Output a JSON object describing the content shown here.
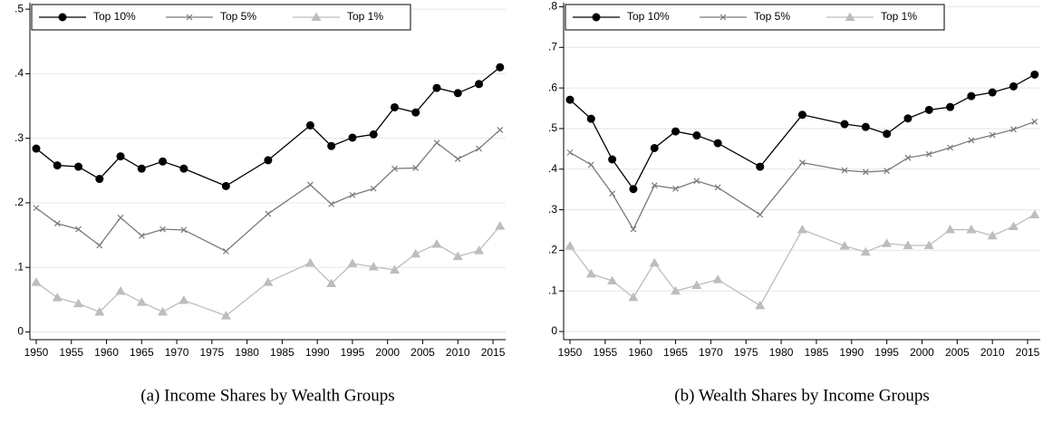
{
  "chart_data": [
    {
      "type": "line",
      "caption": "(a) Income Shares by Wealth Groups",
      "x": [
        1950,
        1953,
        1956,
        1959,
        1962,
        1965,
        1968,
        1971,
        1977,
        1983,
        1989,
        1992,
        1995,
        1998,
        2001,
        2004,
        2007,
        2010,
        2013,
        2016
      ],
      "series": [
        {
          "name": "Top 10%",
          "color": "#000000",
          "marker": "circle",
          "values": [
            0.284,
            0.258,
            0.256,
            0.237,
            0.272,
            0.253,
            0.264,
            0.253,
            0.226,
            0.266,
            0.32,
            0.288,
            0.301,
            0.306,
            0.348,
            0.34,
            0.378,
            0.37,
            0.384,
            0.41
          ]
        },
        {
          "name": "Top 5%",
          "color": "#7a7a7a",
          "marker": "x",
          "values": [
            0.192,
            0.168,
            0.159,
            0.134,
            0.177,
            0.149,
            0.159,
            0.158,
            0.125,
            0.183,
            0.228,
            0.198,
            0.212,
            0.222,
            0.253,
            0.254,
            0.293,
            0.268,
            0.284,
            0.313
          ]
        },
        {
          "name": "Top 1%",
          "color": "#bdbdbd",
          "marker": "triangle",
          "values": [
            0.077,
            0.053,
            0.044,
            0.031,
            0.063,
            0.046,
            0.031,
            0.049,
            0.025,
            0.077,
            0.107,
            0.075,
            0.106,
            0.101,
            0.096,
            0.121,
            0.136,
            0.117,
            0.126,
            0.164
          ]
        }
      ],
      "xlim": [
        1949.1,
        2016.8
      ],
      "xticks": [
        1950,
        1955,
        1960,
        1965,
        1970,
        1975,
        1980,
        1985,
        1990,
        1995,
        2000,
        2005,
        2010,
        2015
      ],
      "ylim": [
        -0.012,
        0.51
      ],
      "yticks": [
        0,
        {
          "value": 0.1,
          "label": ".1"
        },
        {
          "value": 0.2,
          "label": ".2"
        },
        {
          "value": 0.3,
          "label": ".3"
        },
        {
          "value": 0.4,
          "label": ".4"
        },
        {
          "value": 0.5,
          "label": ".5"
        }
      ],
      "grid": true,
      "legend": "top-left"
    },
    {
      "type": "line",
      "caption": "(b) Wealth Shares by Income Groups",
      "x": [
        1950,
        1953,
        1956,
        1959,
        1962,
        1965,
        1968,
        1971,
        1977,
        1983,
        1989,
        1992,
        1995,
        1998,
        2001,
        2004,
        2007,
        2010,
        2013,
        2016
      ],
      "series": [
        {
          "name": "Top 10%",
          "color": "#000000",
          "marker": "circle",
          "values": [
            0.571,
            0.524,
            0.424,
            0.351,
            0.452,
            0.493,
            0.483,
            0.464,
            0.406,
            0.534,
            0.511,
            0.504,
            0.487,
            0.525,
            0.546,
            0.553,
            0.58,
            0.589,
            0.604,
            0.633
          ]
        },
        {
          "name": "Top 5%",
          "color": "#7a7a7a",
          "marker": "x",
          "values": [
            0.441,
            0.411,
            0.34,
            0.252,
            0.36,
            0.352,
            0.371,
            0.355,
            0.288,
            0.416,
            0.397,
            0.393,
            0.396,
            0.428,
            0.437,
            0.453,
            0.471,
            0.484,
            0.498,
            0.517
          ]
        },
        {
          "name": "Top 1%",
          "color": "#bdbdbd",
          "marker": "triangle",
          "values": [
            0.211,
            0.142,
            0.125,
            0.084,
            0.169,
            0.1,
            0.114,
            0.128,
            0.064,
            0.251,
            0.211,
            0.196,
            0.217,
            0.212,
            0.212,
            0.251,
            0.251,
            0.236,
            0.259,
            0.288
          ]
        }
      ],
      "xlim": [
        1949.1,
        2016.8
      ],
      "xticks": [
        1950,
        1955,
        1960,
        1965,
        1970,
        1975,
        1980,
        1985,
        1990,
        1995,
        2000,
        2005,
        2010,
        2015
      ],
      "ylim": [
        -0.02,
        0.81
      ],
      "yticks": [
        0,
        {
          "value": 0.1,
          "label": ".1"
        },
        {
          "value": 0.2,
          "label": ".2"
        },
        {
          "value": 0.3,
          "label": ".3"
        },
        {
          "value": 0.4,
          "label": ".4"
        },
        {
          "value": 0.5,
          "label": ".5"
        },
        {
          "value": 0.6,
          "label": ".6"
        },
        {
          "value": 0.7,
          "label": ".7"
        },
        {
          "value": 0.8,
          "label": ".8"
        }
      ],
      "grid": true,
      "legend": "top-left"
    }
  ]
}
